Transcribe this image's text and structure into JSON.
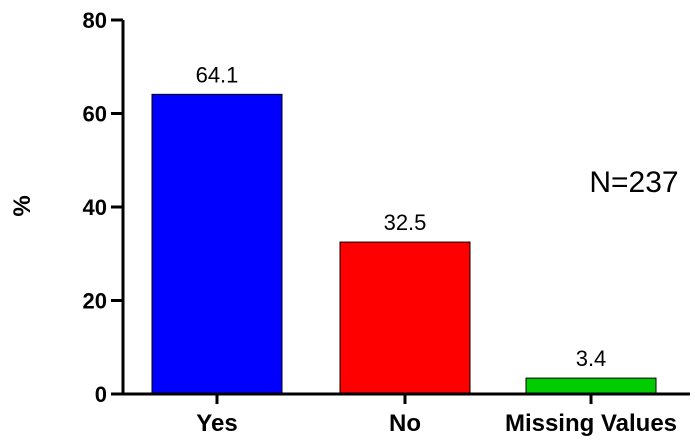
{
  "chart_data": {
    "type": "bar",
    "categories": [
      "Yes",
      "No",
      "Missing Values"
    ],
    "values": [
      64.1,
      32.5,
      3.4
    ],
    "data_labels": [
      "64.1",
      "32.5",
      "3.4"
    ],
    "colors": [
      "#0000ff",
      "#ff0000",
      "#00cc00"
    ],
    "title": "",
    "xlabel": "",
    "ylabel": "%",
    "ylim": [
      0,
      80
    ],
    "yticks": [
      0,
      20,
      40,
      60,
      80
    ],
    "ytick_labels": [
      "0",
      "20",
      "40",
      "60",
      "80"
    ],
    "grid": false,
    "legend": "none",
    "annotation": "N=237"
  }
}
